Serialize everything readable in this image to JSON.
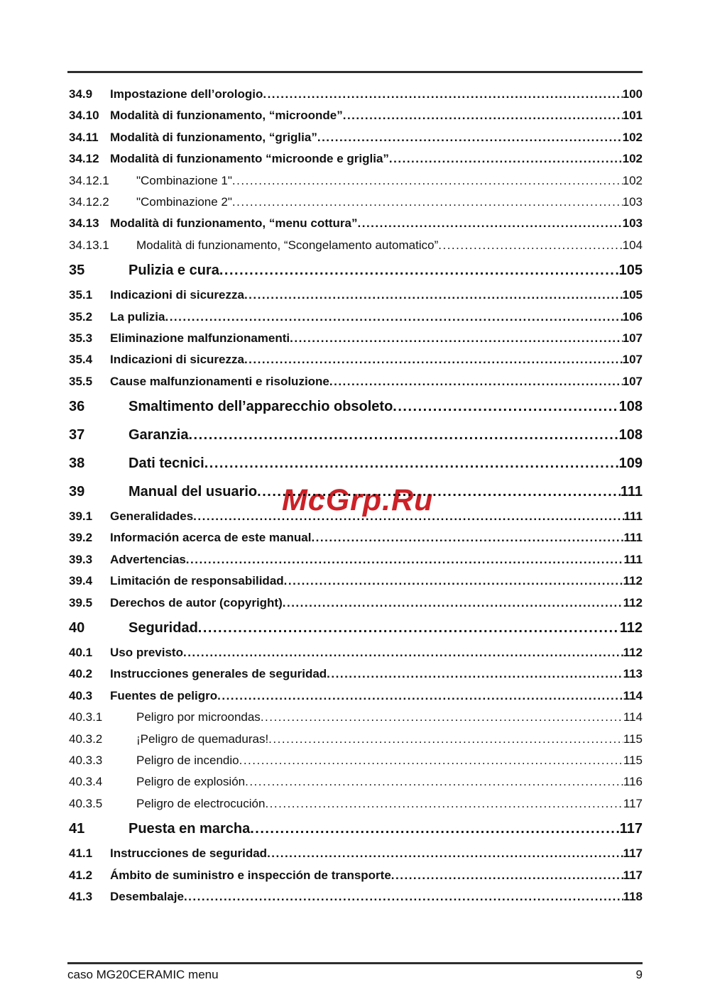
{
  "watermark": {
    "text": "McGrp.Ru",
    "color": "#cc2127"
  },
  "footer": {
    "left": "caso MG20CERAMIC menu",
    "page": "9"
  },
  "toc": {
    "entries": [
      {
        "num": "34.9",
        "title": "Impostazione dell’orologio",
        "page": "100",
        "level": "section"
      },
      {
        "num": "34.10",
        "title": "Modalità di funzionamento, “microonde”",
        "page": "101",
        "level": "section"
      },
      {
        "num": "34.11",
        "title": "Modalità di funzionamento, “griglia”",
        "page": "102",
        "level": "section"
      },
      {
        "num": "34.12",
        "title": "Modalità di funzionamento “microonde e griglia”",
        "page": "102",
        "level": "section"
      },
      {
        "num": "34.12.1",
        "title": "\"Combinazione 1\"",
        "page": "102",
        "level": "subsection"
      },
      {
        "num": "34.12.2",
        "title": "\"Combinazione 2\"",
        "page": "103",
        "level": "subsection"
      },
      {
        "num": "34.13",
        "title": "Modalità di funzionamento, “menu cottura”",
        "page": "103",
        "level": "section"
      },
      {
        "num": "34.13.1",
        "title": "Modalità di funzionamento, “Scongelamento automatico” ",
        "page": "104",
        "level": "subsection"
      },
      {
        "num": "35",
        "title": "Pulizia e cura ",
        "page": "105",
        "level": "chapter"
      },
      {
        "num": "35.1",
        "title": "Indicazioni di sicurezza ",
        "page": "105",
        "level": "section"
      },
      {
        "num": "35.2",
        "title": "La pulizia",
        "page": "106",
        "level": "section"
      },
      {
        "num": "35.3",
        "title": "Eliminazione malfunzionamenti",
        "page": "107",
        "level": "section"
      },
      {
        "num": "35.4",
        "title": "Indicazioni di sicurezza ",
        "page": "107",
        "level": "section"
      },
      {
        "num": "35.5",
        "title": "Cause malfunzionamenti e risoluzione ",
        "page": "107",
        "level": "section"
      },
      {
        "num": "36",
        "title": "Smaltimento dell’apparecchio obsoleto ",
        "page": "108",
        "level": "chapter"
      },
      {
        "num": "37",
        "title": "Garanzia ",
        "page": "108",
        "level": "chapter"
      },
      {
        "num": "38",
        "title": "Dati tecnici ",
        "page": "109",
        "level": "chapter"
      },
      {
        "num": "39",
        "title": "Manual del usuario",
        "page": "111",
        "level": "chapter"
      },
      {
        "num": "39.1",
        "title": "Generalidades ",
        "page": "111",
        "level": "section"
      },
      {
        "num": "39.2",
        "title": "Información acerca de este manual",
        "page": "111",
        "level": "section"
      },
      {
        "num": "39.3",
        "title": "Advertencias",
        "page": "111",
        "level": "section"
      },
      {
        "num": "39.4",
        "title": "Limitación de responsabilidad",
        "page": "112",
        "level": "section"
      },
      {
        "num": "39.5",
        "title": "Derechos de autor (copyright) ",
        "page": "112",
        "level": "section"
      },
      {
        "num": "40",
        "title": "Seguridad",
        "page": "112",
        "level": "chapter"
      },
      {
        "num": "40.1",
        "title": "Uso previsto ",
        "page": "112",
        "level": "section"
      },
      {
        "num": "40.2",
        "title": "Instrucciones generales de seguridad ",
        "page": "113",
        "level": "section"
      },
      {
        "num": "40.3",
        "title": "Fuentes de peligro ",
        "page": "114",
        "level": "section"
      },
      {
        "num": "40.3.1",
        "title": "Peligro por microondas ",
        "page": "114",
        "level": "subsection"
      },
      {
        "num": "40.3.2",
        "title": "¡Peligro de quemaduras!",
        "page": "115",
        "level": "subsection"
      },
      {
        "num": "40.3.3",
        "title": "Peligro de incendio ",
        "page": "115",
        "level": "subsection"
      },
      {
        "num": "40.3.4",
        "title": "Peligro de explosión",
        "page": "116",
        "level": "subsection"
      },
      {
        "num": "40.3.5",
        "title": "Peligro de electrocución",
        "page": "117",
        "level": "subsection"
      },
      {
        "num": "41",
        "title": "Puesta en marcha",
        "page": "117",
        "level": "chapter"
      },
      {
        "num": "41.1",
        "title": "Instrucciones de seguridad",
        "page": "117",
        "level": "section"
      },
      {
        "num": "41.2",
        "title": "Ámbito de suministro e inspección de transporte ",
        "page": "117",
        "level": "section"
      },
      {
        "num": "41.3",
        "title": "Desembalaje ",
        "page": "118",
        "level": "section"
      }
    ]
  }
}
